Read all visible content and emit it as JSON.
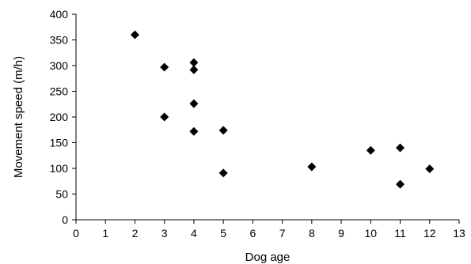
{
  "chart_data": {
    "type": "scatter",
    "title": "",
    "xlabel": "Dog age",
    "ylabel": "Movement speed (m/h)",
    "xlim": [
      0,
      13
    ],
    "ylim": [
      0,
      400
    ],
    "x_ticks": [
      0,
      1,
      2,
      3,
      4,
      5,
      6,
      7,
      8,
      9,
      10,
      11,
      12,
      13
    ],
    "y_ticks": [
      0,
      50,
      100,
      150,
      200,
      250,
      300,
      350,
      400
    ],
    "grid": false,
    "legend": "none",
    "marker": "diamond",
    "marker_color": "#000000",
    "series": [
      {
        "points": [
          {
            "x": 2,
            "y": 360
          },
          {
            "x": 3,
            "y": 297
          },
          {
            "x": 3,
            "y": 200
          },
          {
            "x": 4,
            "y": 306
          },
          {
            "x": 4,
            "y": 292
          },
          {
            "x": 4,
            "y": 226
          },
          {
            "x": 4,
            "y": 172
          },
          {
            "x": 5,
            "y": 174
          },
          {
            "x": 5,
            "y": 91
          },
          {
            "x": 8,
            "y": 103
          },
          {
            "x": 10,
            "y": 135
          },
          {
            "x": 11,
            "y": 140
          },
          {
            "x": 11,
            "y": 69
          },
          {
            "x": 12,
            "y": 99
          }
        ]
      }
    ]
  }
}
